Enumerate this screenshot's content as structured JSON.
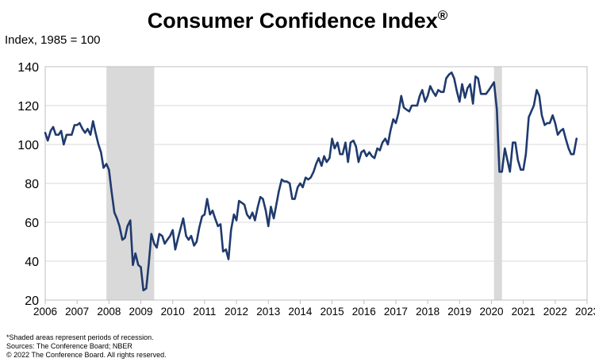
{
  "chart_data": {
    "type": "line",
    "title": "Consumer Confidence Index",
    "title_mark": "®",
    "ylabel": "Index, 1985 = 100",
    "xlabel": "",
    "xlim": [
      2006,
      2023
    ],
    "ylim": [
      20,
      140
    ],
    "y_ticks": [
      20,
      40,
      60,
      80,
      100,
      120,
      140
    ],
    "x_ticks": [
      2006,
      2007,
      2008,
      2009,
      2010,
      2011,
      2012,
      2013,
      2014,
      2015,
      2016,
      2017,
      2018,
      2019,
      2020,
      2021,
      2022,
      2023
    ],
    "x_tick_labels": [
      "2006",
      "2007",
      "2008",
      "2009",
      "2010",
      "2011",
      "2012",
      "2013",
      "2014",
      "2015",
      "2016",
      "2017",
      "2018",
      "2019",
      "2020",
      "2021",
      "2022",
      "2023"
    ],
    "grid": true,
    "legend": "none",
    "line_color": "#1f3a6e",
    "recession_color": "#d9d9d9",
    "recessions": [
      [
        2007.92,
        2009.42
      ],
      [
        2020.08,
        2020.33
      ]
    ],
    "series": [
      {
        "x": [
          2006.0,
          2006.08,
          2006.17,
          2006.25,
          2006.33,
          2006.42,
          2006.5,
          2006.58,
          2006.67,
          2006.75,
          2006.83,
          2006.92,
          2007.0,
          2007.08,
          2007.17,
          2007.25,
          2007.33,
          2007.42,
          2007.5,
          2007.58,
          2007.67,
          2007.75,
          2007.83,
          2007.92,
          2008.0,
          2008.08,
          2008.17,
          2008.25,
          2008.33,
          2008.42,
          2008.5,
          2008.58,
          2008.67,
          2008.75,
          2008.83,
          2008.92,
          2009.0,
          2009.08,
          2009.17,
          2009.25,
          2009.33,
          2009.42,
          2009.5,
          2009.58,
          2009.67,
          2009.75,
          2009.83,
          2009.92,
          2010.0,
          2010.08,
          2010.17,
          2010.25,
          2010.33,
          2010.42,
          2010.5,
          2010.58,
          2010.67,
          2010.75,
          2010.83,
          2010.92,
          2011.0,
          2011.08,
          2011.17,
          2011.25,
          2011.33,
          2011.42,
          2011.5,
          2011.58,
          2011.67,
          2011.75,
          2011.83,
          2011.92,
          2012.0,
          2012.08,
          2012.17,
          2012.25,
          2012.33,
          2012.42,
          2012.5,
          2012.58,
          2012.67,
          2012.75,
          2012.83,
          2012.92,
          2013.0,
          2013.08,
          2013.17,
          2013.25,
          2013.33,
          2013.42,
          2013.5,
          2013.58,
          2013.67,
          2013.75,
          2013.83,
          2013.92,
          2014.0,
          2014.08,
          2014.17,
          2014.25,
          2014.33,
          2014.42,
          2014.5,
          2014.58,
          2014.67,
          2014.75,
          2014.83,
          2014.92,
          2015.0,
          2015.08,
          2015.17,
          2015.25,
          2015.33,
          2015.42,
          2015.5,
          2015.58,
          2015.67,
          2015.75,
          2015.83,
          2015.92,
          2016.0,
          2016.08,
          2016.17,
          2016.25,
          2016.33,
          2016.42,
          2016.5,
          2016.58,
          2016.67,
          2016.75,
          2016.83,
          2016.92,
          2017.0,
          2017.08,
          2017.17,
          2017.25,
          2017.33,
          2017.42,
          2017.5,
          2017.58,
          2017.67,
          2017.75,
          2017.83,
          2017.92,
          2018.0,
          2018.08,
          2018.17,
          2018.25,
          2018.33,
          2018.42,
          2018.5,
          2018.58,
          2018.67,
          2018.75,
          2018.83,
          2018.92,
          2019.0,
          2019.08,
          2019.17,
          2019.25,
          2019.33,
          2019.42,
          2019.5,
          2019.58,
          2019.67,
          2019.75,
          2019.83,
          2019.92,
          2020.0,
          2020.08,
          2020.17,
          2020.25,
          2020.33,
          2020.42,
          2020.5,
          2020.58,
          2020.67,
          2020.75,
          2020.83,
          2020.92,
          2021.0,
          2021.08,
          2021.17,
          2021.25,
          2021.33,
          2021.42,
          2021.5,
          2021.58,
          2021.67,
          2021.75,
          2021.83,
          2021.92,
          2022.0,
          2022.08,
          2022.17,
          2022.25,
          2022.33,
          2022.42,
          2022.5,
          2022.58,
          2022.67
        ],
        "values": [
          106,
          102,
          107,
          109,
          105,
          105,
          107,
          100,
          105,
          105,
          105,
          110,
          110,
          111,
          108,
          106,
          108,
          105,
          112,
          106,
          100,
          96,
          88,
          90,
          87,
          76,
          65,
          62,
          58,
          51,
          52,
          58,
          61,
          38,
          44,
          38,
          37,
          25,
          26,
          39,
          54,
          49,
          47,
          54,
          53,
          49,
          51,
          53,
          56,
          46,
          52,
          57,
          62,
          53,
          51,
          53,
          48,
          50,
          57,
          63,
          64,
          72,
          64,
          66,
          62,
          58,
          59,
          45,
          46,
          41,
          56,
          64,
          61,
          71,
          70,
          69,
          64,
          62,
          65,
          61,
          68,
          73,
          72,
          66,
          58,
          68,
          62,
          69,
          76,
          82,
          81,
          81,
          80,
          72,
          72,
          78,
          80,
          78,
          83,
          82,
          83,
          86,
          90,
          93,
          89,
          94,
          91,
          93,
          103,
          98,
          101,
          95,
          95,
          101,
          91,
          101,
          102,
          99,
          91,
          96,
          97,
          94,
          96,
          94,
          93,
          98,
          97,
          101,
          103,
          100,
          107,
          113,
          111,
          116,
          125,
          119,
          118,
          117,
          120,
          120,
          120,
          125,
          128,
          122,
          125,
          130,
          127,
          125,
          128,
          127,
          127,
          134,
          136,
          137,
          134,
          127,
          122,
          131,
          124,
          129,
          131,
          121,
          135,
          134,
          126,
          126,
          126,
          128,
          130,
          132,
          118,
          86,
          86,
          98,
          92,
          86,
          101,
          101,
          92,
          87,
          87,
          95,
          114,
          117,
          120,
          128,
          125,
          115,
          110,
          111,
          111,
          115,
          111,
          105,
          107,
          108,
          103,
          98,
          95,
          95,
          103
        ]
      }
    ],
    "notes": [
      "*Shaded areas represent periods of recession.",
      "Sources: The Conference Board; NBER",
      "© 2022 The Conference Board. All rights reserved."
    ]
  }
}
